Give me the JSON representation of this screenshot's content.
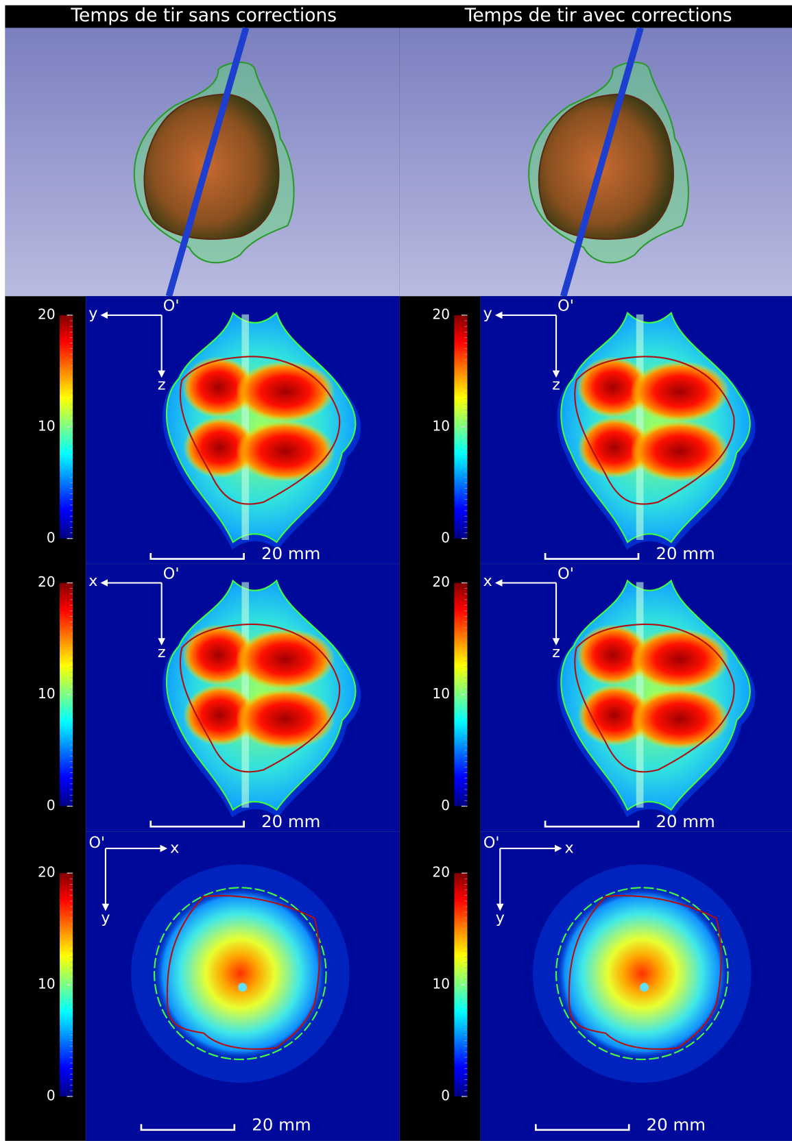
{
  "columns": [
    {
      "title": "Temps de tir sans corrections",
      "panels": [
        {
          "axes": {
            "origin": "O'",
            "horizontal": "y",
            "vertical": "z"
          },
          "colorbar_ticks": [
            20,
            10,
            0
          ],
          "scale_bar": "20 mm"
        },
        {
          "axes": {
            "origin": "O'",
            "horizontal": "x",
            "vertical": "z"
          },
          "colorbar_ticks": [
            20,
            10,
            0
          ],
          "scale_bar": "20 mm"
        },
        {
          "axes": {
            "origin": "O'",
            "horizontal": "x",
            "vertical": "y"
          },
          "colorbar_ticks": [
            20,
            10,
            0
          ],
          "scale_bar": "20 mm"
        }
      ]
    },
    {
      "title": "Temps de tir avec corrections",
      "panels": [
        {
          "axes": {
            "origin": "O'",
            "horizontal": "y",
            "vertical": "z"
          },
          "colorbar_ticks": [
            20,
            10,
            0
          ],
          "scale_bar": "20 mm"
        },
        {
          "axes": {
            "origin": "O'",
            "horizontal": "x",
            "vertical": "z"
          },
          "colorbar_ticks": [
            20,
            10,
            0
          ],
          "scale_bar": "20 mm"
        },
        {
          "axes": {
            "origin": "O'",
            "horizontal": "x",
            "vertical": "y"
          },
          "colorbar_ticks": [
            20,
            10,
            0
          ],
          "scale_bar": "20 mm"
        }
      ]
    }
  ]
}
